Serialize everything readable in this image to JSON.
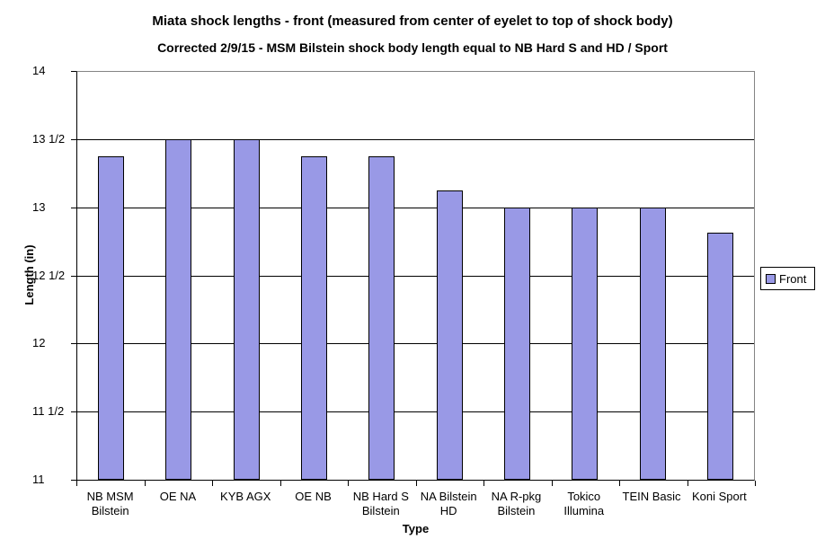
{
  "chart_data": {
    "type": "bar",
    "title": "Miata shock lengths - front (measured from center of eyelet to top of shock body)",
    "subtitle": "Corrected 2/9/15 - MSM Bilstein shock body length equal to NB Hard S and HD / Sport",
    "xlabel": "Type",
    "ylabel": "Length (in)",
    "ylim": [
      11,
      14
    ],
    "ytick_step": 0.5,
    "ytick_labels": [
      "14",
      "13 1/2",
      "13",
      "12 1/2",
      "12",
      "11 1/2",
      "11"
    ],
    "grid": true,
    "legend_position": "right",
    "categories": [
      "NB MSM Bilstein",
      "OE NA",
      "KYB AGX",
      "OE NB",
      "NB Hard S Bilstein",
      "NA Bilstein HD",
      "NA R-pkg Bilstein",
      "Tokico Illumina",
      "TEIN Basic",
      "Koni Sport"
    ],
    "category_label_lines": [
      [
        "NB MSM",
        "Bilstein"
      ],
      [
        "OE NA"
      ],
      [
        "KYB AGX"
      ],
      [
        "OE NB"
      ],
      [
        "NB Hard S",
        "Bilstein"
      ],
      [
        "NA Bilstein",
        "HD"
      ],
      [
        "NA R-pkg",
        "Bilstein"
      ],
      [
        "Tokico",
        "Illumina"
      ],
      [
        "TEIN Basic"
      ],
      [
        "Koni Sport"
      ]
    ],
    "series": [
      {
        "name": "Front",
        "values": [
          13.375,
          13.5,
          13.5,
          13.375,
          13.375,
          13.125,
          13,
          13,
          13,
          12.8125
        ]
      }
    ],
    "colors": {
      "bar_fill": "#9999e6",
      "bar_border": "#000000",
      "gridline": "#000000",
      "plot_border": "#848484",
      "axis": "#000000",
      "background": "#ffffff",
      "text": "#000000"
    }
  }
}
